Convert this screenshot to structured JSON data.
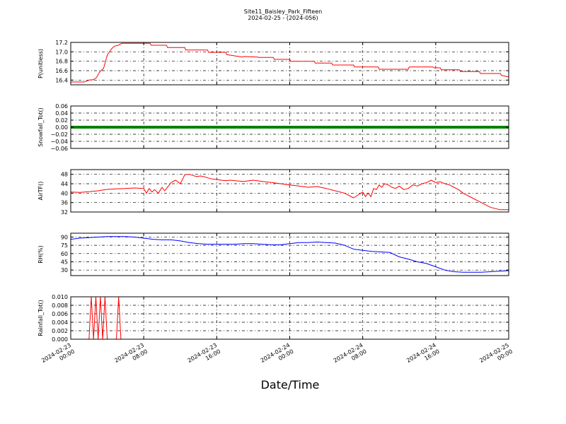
{
  "figure": {
    "title": "Site11_Baisley_Park_Fifteen",
    "subtitle": "2024-02-25 - (2024-056)",
    "xlabel": "Date/Time"
  },
  "chart_data": [
    {
      "type": "line",
      "ylabel": "P(unitless)",
      "ylim": [
        16.3,
        17.2
      ],
      "yticks": [
        "17.2",
        "17.0",
        "16.8",
        "16.6",
        "16.4"
      ],
      "ytick_values": [
        17.2,
        17.0,
        16.8,
        16.6,
        16.4
      ],
      "xlim": [
        0,
        48
      ],
      "color": "#ff0000",
      "grid": true,
      "series": [
        {
          "x": [
            0,
            1.5,
            2,
            2.5,
            2.8,
            3.2,
            3.6,
            4.0,
            4.5,
            4.8,
            5.2,
            5.6,
            6,
            8,
            8.7,
            8.8,
            10.5,
            10.6,
            12.5,
            12.6,
            15,
            15.1,
            17,
            17.1,
            18.8,
            19,
            20.5,
            20.6,
            22.2,
            22.3,
            24,
            24.1,
            26.7,
            26.8,
            28.6,
            28.7,
            31,
            31.1,
            33.7,
            33.8,
            37,
            37.1,
            39.7,
            39.8,
            40.5,
            40.6,
            42.6,
            42.7,
            44.8,
            44.9,
            47.1,
            47.2,
            48
          ],
          "y": [
            16.36,
            16.36,
            16.4,
            16.41,
            16.45,
            16.58,
            16.65,
            16.93,
            17.07,
            17.12,
            17.14,
            17.18,
            17.18,
            17.18,
            17.18,
            17.14,
            17.14,
            17.09,
            17.09,
            17.04,
            17.04,
            16.99,
            16.99,
            16.94,
            16.89,
            16.9,
            16.89,
            16.88,
            16.88,
            16.84,
            16.84,
            16.8,
            16.8,
            16.76,
            16.76,
            16.72,
            16.72,
            16.68,
            16.68,
            16.63,
            16.63,
            16.68,
            16.68,
            16.66,
            16.66,
            16.62,
            16.62,
            16.58,
            16.58,
            16.54,
            16.54,
            16.5,
            16.47
          ]
        }
      ]
    },
    {
      "type": "line",
      "ylabel": "Snowfall_Tot()",
      "ylim": [
        -0.06,
        0.06
      ],
      "yticks": [
        "0.06",
        "0.04",
        "0.02",
        "0.00",
        "−0.02",
        "−0.04",
        "−0.06"
      ],
      "ytick_values": [
        0.06,
        0.04,
        0.02,
        0.0,
        -0.02,
        -0.04,
        -0.06
      ],
      "xlim": [
        0,
        48
      ],
      "color": "#008000",
      "linewidth": 4,
      "grid": true,
      "series": [
        {
          "x": [
            0,
            48
          ],
          "y": [
            0,
            0
          ]
        }
      ]
    },
    {
      "type": "line",
      "ylabel": "AirTF()",
      "ylim": [
        32,
        50
      ],
      "yticks": [
        "48",
        "44",
        "40",
        "36",
        "32"
      ],
      "ytick_values": [
        48,
        44,
        40,
        36,
        32
      ],
      "xlim": [
        0,
        48
      ],
      "color": "#ff0000",
      "grid": true,
      "series": [
        {
          "x": [
            0,
            1,
            2,
            3,
            4,
            5,
            6,
            7,
            8,
            8.3,
            8.6,
            8.9,
            9.2,
            9.6,
            10,
            10.3,
            10.7,
            11,
            11.5,
            12,
            12.5,
            13,
            13.4,
            13.8,
            14.2,
            14.6,
            15,
            15.5,
            16,
            16.5,
            17,
            17.5,
            18,
            19,
            20,
            21,
            22,
            23,
            24,
            25,
            26,
            27,
            28,
            29,
            30,
            31,
            32,
            32.3,
            32.6,
            32.9,
            33.2,
            33.5,
            33.8,
            34.1,
            34.4,
            34.8,
            35.2,
            35.6,
            36,
            36.5,
            37,
            37.5,
            38,
            38.5,
            39,
            39.5,
            40,
            40.5,
            41,
            41.5,
            42,
            42.5,
            43,
            44,
            45,
            46,
            47,
            48
          ],
          "y": [
            40.5,
            40.3,
            40.6,
            41.0,
            41.6,
            41.8,
            42.0,
            42.2,
            42.0,
            40.0,
            42.0,
            40.5,
            41.5,
            40.0,
            42.5,
            41.0,
            43.0,
            44.5,
            45.5,
            44.0,
            47.8,
            48.0,
            47.5,
            47.0,
            47.3,
            47.0,
            46.5,
            46.0,
            45.8,
            45.5,
            45.3,
            45.5,
            45.3,
            45.0,
            45.5,
            45.0,
            44.5,
            44.0,
            43.5,
            43.0,
            42.5,
            42.8,
            42.0,
            41.0,
            40.0,
            38.0,
            40.5,
            38.5,
            40.0,
            38.5,
            42.0,
            41.5,
            43.5,
            42.5,
            44.0,
            43.5,
            42.5,
            42.0,
            43.0,
            41.5,
            42.0,
            43.5,
            43.0,
            44.0,
            44.5,
            45.5,
            44.5,
            44.8,
            44.0,
            43.5,
            42.5,
            41.5,
            40.0,
            38.0,
            36.0,
            34.0,
            33.0,
            33.0
          ]
        }
      ]
    },
    {
      "type": "line",
      "ylabel": "RH(%)",
      "ylim": [
        20,
        97
      ],
      "yticks": [
        "90",
        "75",
        "60",
        "45",
        "30"
      ],
      "ytick_values": [
        90,
        75,
        60,
        45,
        30
      ],
      "xlim": [
        0,
        48
      ],
      "color": "#0000ff",
      "grid": true,
      "series": [
        {
          "x": [
            0,
            1,
            2,
            3,
            4,
            5,
            6,
            7,
            8,
            9,
            10,
            11,
            12,
            13,
            14,
            15,
            16,
            17,
            18,
            19,
            20,
            21,
            22,
            23,
            24,
            25,
            26,
            27,
            28,
            29,
            30,
            31,
            32,
            33,
            34,
            35,
            36,
            37,
            38,
            39,
            40,
            41,
            42,
            43,
            44,
            45,
            46,
            47,
            48
          ],
          "y": [
            86,
            88,
            89,
            90,
            91,
            91,
            91,
            90,
            88,
            86,
            85,
            85,
            83,
            80,
            78,
            77,
            77,
            77,
            77,
            78,
            78,
            77,
            76,
            76,
            78,
            80,
            80,
            81,
            80,
            79,
            75,
            68,
            66,
            64,
            63,
            62,
            54,
            50,
            45,
            42,
            36,
            30,
            27,
            26,
            26,
            26,
            27,
            28,
            29
          ]
        }
      ]
    },
    {
      "type": "line",
      "ylabel": "Rainfall_Tot()",
      "ylim": [
        0.0,
        0.01
      ],
      "yticks": [
        "0.010",
        "0.008",
        "0.006",
        "0.004",
        "0.002",
        "0.000"
      ],
      "ytick_values": [
        0.01,
        0.008,
        0.006,
        0.004,
        0.002,
        0.0
      ],
      "xlim": [
        0,
        48
      ],
      "color": "#ff0000",
      "grid": true,
      "series": [
        {
          "x": [
            0,
            2.0,
            2.25,
            2.5,
            2.75,
            3.0,
            3.25,
            3.5,
            3.75,
            4.0,
            4.25,
            4.5,
            4.75,
            5.0,
            5.25,
            5.5,
            48
          ],
          "y": [
            0,
            0,
            0.01,
            0,
            0.01,
            0,
            0.01,
            0,
            0.01,
            0,
            0,
            0,
            0,
            0,
            0.01,
            0,
            0
          ]
        }
      ]
    }
  ],
  "xaxis": {
    "xticks": [
      0,
      8,
      16,
      24,
      32,
      40,
      48
    ],
    "xtick_labels": [
      [
        "2024-02-23",
        "00:00"
      ],
      [
        "2024-02-23",
        "08:00"
      ],
      [
        "2024-02-23",
        "16:00"
      ],
      [
        "2024-02-24",
        "00:00"
      ],
      [
        "2024-02-24",
        "08:00"
      ],
      [
        "2024-02-24",
        "16:00"
      ],
      [
        "2024-02-25",
        "00:00"
      ]
    ]
  }
}
